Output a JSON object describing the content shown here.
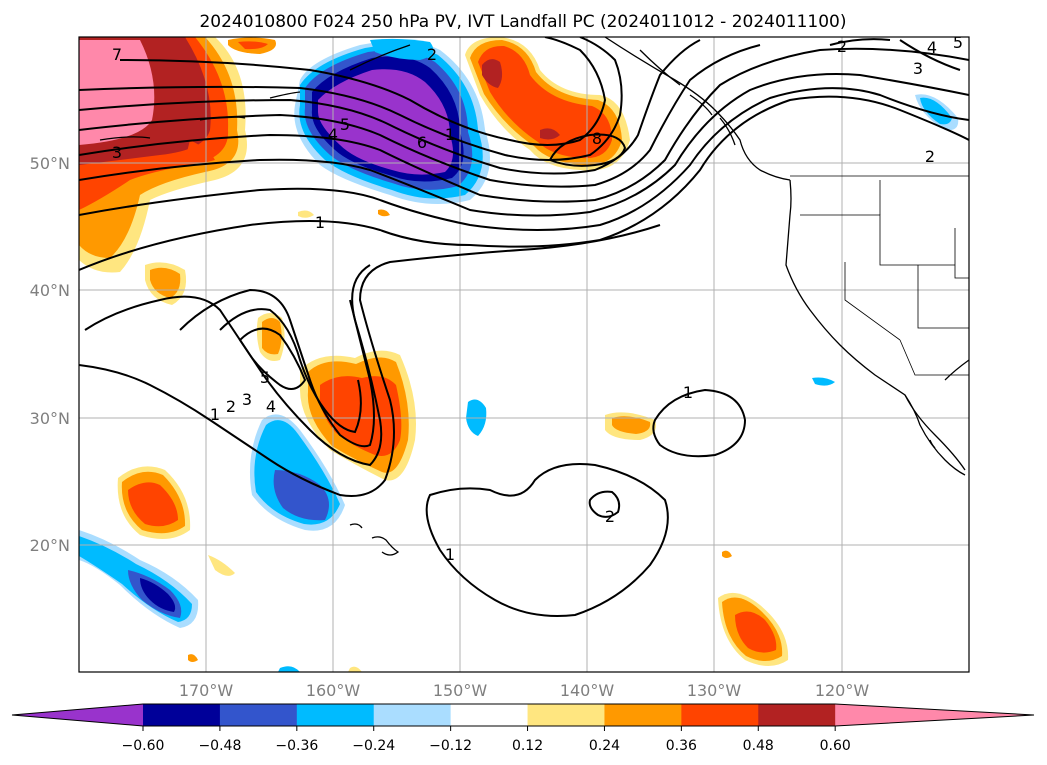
{
  "figure": {
    "title": "2024010800 F024 250 hPa PV, IVT Landfall PC (2024011012 - 2024011100)"
  },
  "map": {
    "lon_range": [
      -180,
      -110
    ],
    "lat_range": [
      10,
      60
    ],
    "lat_ticks": [
      {
        "value": 20,
        "label": "20°N"
      },
      {
        "value": 30,
        "label": "30°N"
      },
      {
        "value": 40,
        "label": "40°N"
      },
      {
        "value": 50,
        "label": "50°N"
      }
    ],
    "lon_ticks": [
      {
        "value": -170,
        "label": "170°W"
      },
      {
        "value": -160,
        "label": "160°W"
      },
      {
        "value": -150,
        "label": "150°W"
      },
      {
        "value": -140,
        "label": "140°W"
      },
      {
        "value": -130,
        "label": "130°W"
      },
      {
        "value": -120,
        "label": "120°W"
      }
    ],
    "gridlines": true
  },
  "chart_data": {
    "type": "heatmap",
    "title": "2024010800 F024 250 hPa PV, IVT Landfall PC (2024011012 - 2024011100)",
    "shading_variable": "IVT Landfall PC",
    "contour_variable": "250 hPa PV",
    "contour_labels": [
      "1",
      "2",
      "3",
      "4",
      "5",
      "6",
      "7",
      "8",
      "1",
      "2",
      "3",
      "4",
      "5",
      "1",
      "2",
      "1",
      "2",
      "3",
      "4",
      "5",
      "1",
      "2"
    ],
    "colorbar": {
      "levels": [
        -0.6,
        -0.48,
        -0.36,
        -0.24,
        -0.12,
        0.12,
        0.24,
        0.36,
        0.48,
        0.6
      ],
      "tick_labels": [
        "−0.60",
        "−0.48",
        "−0.36",
        "−0.24",
        "−0.12",
        "0.12",
        "0.24",
        "0.36",
        "0.48",
        "0.60"
      ],
      "colors": [
        "#9933cc",
        "#000099",
        "#3355cc",
        "#00bbff",
        "#aaddff",
        "#ffffff",
        "#ffe680",
        "#ff9900",
        "#ff4400",
        "#b22222",
        "#ff88aa"
      ],
      "extend": "both"
    }
  }
}
